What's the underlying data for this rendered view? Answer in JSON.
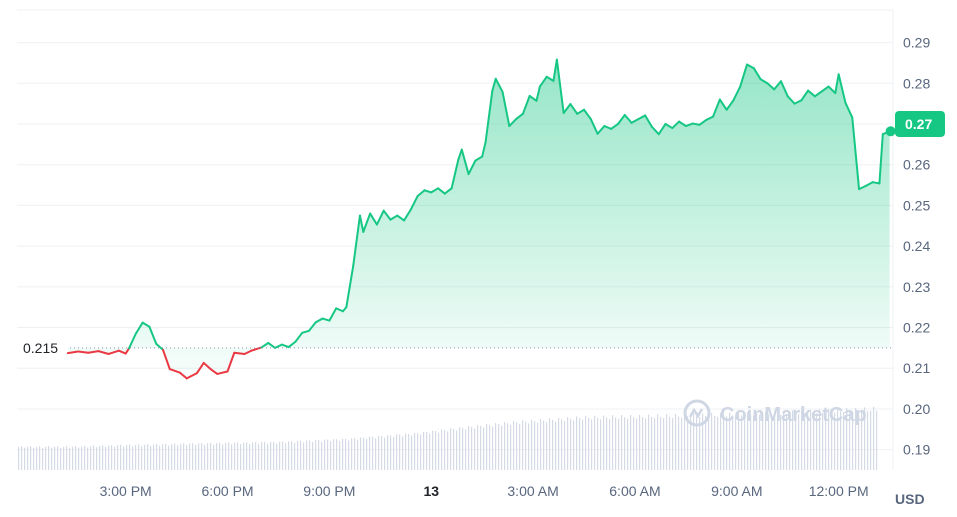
{
  "chart_data": {
    "type": "line",
    "unit": "USD",
    "watermark": "CoinMarketCap",
    "reference": {
      "value": 0.215,
      "label": "0.215"
    },
    "current": {
      "value": 0.27,
      "label": "0.27"
    },
    "ylim": [
      0.185,
      0.298
    ],
    "y_ticks": [
      0.19,
      0.2,
      0.21,
      0.22,
      0.23,
      0.24,
      0.25,
      0.26,
      0.27,
      0.28,
      0.29
    ],
    "y_tick_labels": [
      "0.19",
      "0.20",
      "0.21",
      "0.22",
      "0.23",
      "0.24",
      "0.25",
      "0.26",
      "0.27",
      "0.28",
      "0.29"
    ],
    "x_ticks": [
      {
        "label": "3:00 PM",
        "hour": 15,
        "bold": false
      },
      {
        "label": "6:00 PM",
        "hour": 18,
        "bold": false
      },
      {
        "label": "9:00 PM",
        "hour": 21,
        "bold": false
      },
      {
        "label": "13",
        "hour": 24,
        "bold": true
      },
      {
        "label": "3:00 AM",
        "hour": 27,
        "bold": false
      },
      {
        "label": "6:00 AM",
        "hour": 30,
        "bold": false
      },
      {
        "label": "9:00 AM",
        "hour": 33,
        "bold": false
      },
      {
        "label": "12:00 PM",
        "hour": 36,
        "bold": false
      }
    ],
    "xlim": [
      11.8,
      37.6
    ],
    "grid": true,
    "series": [
      {
        "points": [
          [
            13.3,
            0.2137
          ],
          [
            13.6,
            0.2141
          ],
          [
            13.9,
            0.2138
          ],
          [
            14.2,
            0.2142
          ],
          [
            14.5,
            0.2135
          ],
          [
            14.8,
            0.2143
          ],
          [
            15.0,
            0.2136
          ],
          [
            15.1,
            0.2149
          ],
          [
            15.3,
            0.2185
          ],
          [
            15.5,
            0.2212
          ],
          [
            15.7,
            0.2202
          ],
          [
            15.9,
            0.216
          ],
          [
            16.1,
            0.2145
          ],
          [
            16.3,
            0.2098
          ],
          [
            16.6,
            0.2089
          ],
          [
            16.8,
            0.2075
          ],
          [
            17.1,
            0.2088
          ],
          [
            17.3,
            0.2113
          ],
          [
            17.5,
            0.2098
          ],
          [
            17.7,
            0.2086
          ],
          [
            18.0,
            0.2092
          ],
          [
            18.2,
            0.2138
          ],
          [
            18.5,
            0.2135
          ],
          [
            18.7,
            0.2143
          ],
          [
            19.0,
            0.2151
          ],
          [
            19.2,
            0.2162
          ],
          [
            19.4,
            0.215
          ],
          [
            19.6,
            0.2158
          ],
          [
            19.8,
            0.2152
          ],
          [
            20.0,
            0.2165
          ],
          [
            20.2,
            0.2187
          ],
          [
            20.4,
            0.2192
          ],
          [
            20.6,
            0.2213
          ],
          [
            20.8,
            0.2222
          ],
          [
            21.0,
            0.2217
          ],
          [
            21.2,
            0.2247
          ],
          [
            21.4,
            0.224
          ],
          [
            21.5,
            0.225
          ],
          [
            21.7,
            0.235
          ],
          [
            21.9,
            0.2475
          ],
          [
            22.0,
            0.2435
          ],
          [
            22.2,
            0.248
          ],
          [
            22.4,
            0.2453
          ],
          [
            22.6,
            0.2487
          ],
          [
            22.8,
            0.2465
          ],
          [
            23.0,
            0.2475
          ],
          [
            23.2,
            0.2463
          ],
          [
            23.4,
            0.249
          ],
          [
            23.6,
            0.2523
          ],
          [
            23.8,
            0.2537
          ],
          [
            24.0,
            0.2532
          ],
          [
            24.2,
            0.2542
          ],
          [
            24.4,
            0.2529
          ],
          [
            24.6,
            0.2542
          ],
          [
            24.8,
            0.2613
          ],
          [
            24.9,
            0.2637
          ],
          [
            25.1,
            0.2577
          ],
          [
            25.3,
            0.261
          ],
          [
            25.5,
            0.262
          ],
          [
            25.6,
            0.2655
          ],
          [
            25.8,
            0.2782
          ],
          [
            25.9,
            0.2811
          ],
          [
            26.1,
            0.2779
          ],
          [
            26.3,
            0.2695
          ],
          [
            26.5,
            0.2712
          ],
          [
            26.7,
            0.2725
          ],
          [
            26.9,
            0.2769
          ],
          [
            27.1,
            0.2757
          ],
          [
            27.2,
            0.2792
          ],
          [
            27.4,
            0.2816
          ],
          [
            27.6,
            0.2806
          ],
          [
            27.7,
            0.2858
          ],
          [
            27.9,
            0.2727
          ],
          [
            28.1,
            0.2749
          ],
          [
            28.3,
            0.2725
          ],
          [
            28.5,
            0.2735
          ],
          [
            28.7,
            0.2712
          ],
          [
            28.9,
            0.2676
          ],
          [
            29.1,
            0.2695
          ],
          [
            29.3,
            0.2688
          ],
          [
            29.5,
            0.27
          ],
          [
            29.7,
            0.2722
          ],
          [
            29.9,
            0.2703
          ],
          [
            30.1,
            0.2712
          ],
          [
            30.3,
            0.2721
          ],
          [
            30.5,
            0.2693
          ],
          [
            30.7,
            0.2675
          ],
          [
            30.9,
            0.27
          ],
          [
            31.1,
            0.269
          ],
          [
            31.3,
            0.2706
          ],
          [
            31.5,
            0.2695
          ],
          [
            31.7,
            0.2701
          ],
          [
            31.9,
            0.2698
          ],
          [
            32.1,
            0.271
          ],
          [
            32.3,
            0.2718
          ],
          [
            32.5,
            0.276
          ],
          [
            32.7,
            0.2735
          ],
          [
            32.9,
            0.2758
          ],
          [
            33.1,
            0.2792
          ],
          [
            33.3,
            0.2846
          ],
          [
            33.5,
            0.2837
          ],
          [
            33.7,
            0.281
          ],
          [
            33.9,
            0.28
          ],
          [
            34.1,
            0.2785
          ],
          [
            34.3,
            0.2805
          ],
          [
            34.5,
            0.2768
          ],
          [
            34.7,
            0.275
          ],
          [
            34.9,
            0.2758
          ],
          [
            35.1,
            0.2782
          ],
          [
            35.3,
            0.2768
          ],
          [
            35.5,
            0.278
          ],
          [
            35.7,
            0.2792
          ],
          [
            35.9,
            0.2776
          ],
          [
            36.0,
            0.2822
          ],
          [
            36.2,
            0.2752
          ],
          [
            36.4,
            0.2716
          ],
          [
            36.6,
            0.254
          ],
          [
            36.8,
            0.2548
          ],
          [
            37.0,
            0.2557
          ],
          [
            37.2,
            0.2554
          ],
          [
            37.3,
            0.2675
          ],
          [
            37.5,
            0.2682
          ]
        ]
      }
    ],
    "volume_level": [
      [
        13.3,
        0.3
      ],
      [
        15.0,
        0.32
      ],
      [
        17.0,
        0.34
      ],
      [
        19.5,
        0.36
      ],
      [
        21.5,
        0.4
      ],
      [
        23.5,
        0.47
      ],
      [
        25.0,
        0.55
      ],
      [
        26.5,
        0.62
      ],
      [
        28.5,
        0.68
      ],
      [
        31.0,
        0.7
      ],
      [
        33.0,
        0.72
      ],
      [
        35.0,
        0.75
      ],
      [
        37.6,
        0.8
      ]
    ]
  }
}
